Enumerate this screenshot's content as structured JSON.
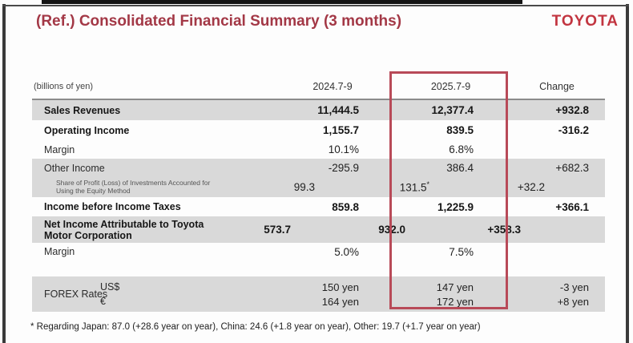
{
  "header": {
    "title": "(Ref.) Consolidated Financial Summary (3 months)",
    "brand": "TOYOTA"
  },
  "table": {
    "unit_label": "(billions of yen)",
    "columns": {
      "col1": "2024.7-9",
      "col2": "2025.7-9",
      "col3": "Change"
    },
    "rows": [
      {
        "label": "Sales Revenues",
        "v1": "11,444.5",
        "v2": "12,377.4",
        "change": "+932.8"
      },
      {
        "label": "Operating Income",
        "v1": "1,155.7",
        "v2": "839.5",
        "change": "-316.2"
      },
      {
        "label": "Margin",
        "v1": "10.1%",
        "v2": "6.8%",
        "change": ""
      },
      {
        "label": "Other Income",
        "v1": "-295.9",
        "v2": "386.4",
        "change": "+682.3"
      },
      {
        "label": "Share of Profit (Loss) of Investments Accounted for Using the Equity Method",
        "v1": "99.3",
        "v2": "131.5",
        "note": "*",
        "change": "+32.2"
      },
      {
        "label": "Income before Income Taxes",
        "v1": "859.8",
        "v2": "1,225.9",
        "change": "+366.1"
      },
      {
        "label": "Net Income Attributable to Toyota Motor Corporation",
        "v1": "573.7",
        "v2": "932.0",
        "change": "+358.3"
      },
      {
        "label": "Margin",
        "v1": "5.0%",
        "v2": "7.5%",
        "change": ""
      }
    ],
    "forex": {
      "label": "FOREX Rates",
      "rows": [
        {
          "currency": "US$",
          "v1": "150 yen",
          "v2": "147 yen",
          "change": "-3 yen"
        },
        {
          "currency": "€",
          "v1": "164 yen",
          "v2": "172 yen",
          "change": "+8 yen"
        }
      ]
    }
  },
  "footnote": "* Regarding Japan: 87.0 (+28.6 year on year), China: 24.6 (+1.8 year on year), Other: 19.7 (+1.7 year on year)",
  "colors": {
    "title_red": "#a33846",
    "brand_red": "#c23540",
    "highlight_box_red": "#b84a58",
    "row_gray": "#d9d9d9"
  }
}
